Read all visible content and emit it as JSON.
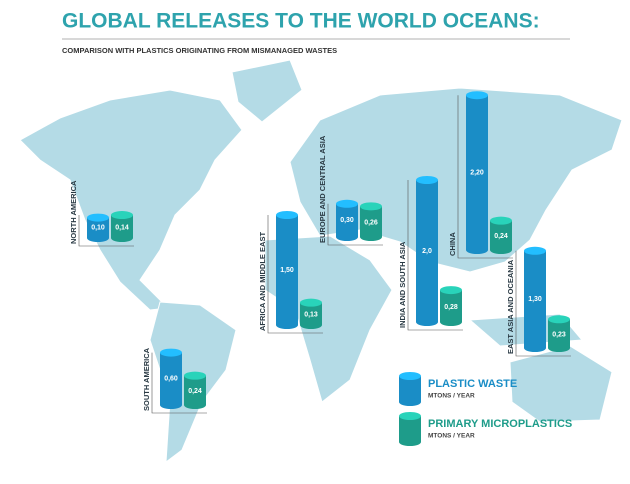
{
  "chart_data": {
    "type": "cylinder",
    "title": "GLOBAL RELEASES TO THE WORLD OCEANS:",
    "subtitle": "COMPARISON WITH PLASTICS ORIGINATING FROM MISMANAGED WASTES",
    "legend_unit": "MTONS / YEAR",
    "categories": [
      "NORTH AMERICA",
      "EUROPE AND CENTRAL ASIA",
      "AFRICA AND MIDDLE EAST",
      "SOUTH AMERICA",
      "INDIA AND SOUTH ASIA",
      "CHINA",
      "EAST ASIA AND OCEANIA"
    ],
    "series": [
      {
        "name": "PLASTIC WASTE",
        "color": "#1a8dc6",
        "values": [
          0.1,
          0.3,
          1.5,
          0.6,
          2.0,
          2.2,
          1.3
        ],
        "value_labels": [
          "0,10",
          "0,30",
          "1,50",
          "0,60",
          "2,0",
          "2,20",
          "1,30"
        ]
      },
      {
        "name": "PRIMARY MICROPLASTICS",
        "color": "#1e9c8a",
        "values": [
          0.14,
          0.26,
          0.13,
          0.24,
          0.28,
          0.24,
          0.23
        ],
        "value_labels": [
          "0,14",
          "0,26",
          "0,13",
          "0,24",
          "0,28",
          "0,24",
          "0,23"
        ]
      }
    ]
  }
}
